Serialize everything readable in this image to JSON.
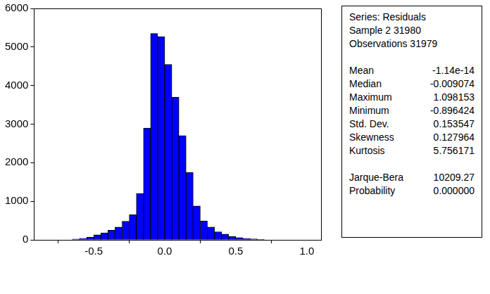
{
  "chart_data": {
    "type": "histogram",
    "bins": [
      -0.65,
      -0.6,
      -0.55,
      -0.5,
      -0.45,
      -0.4,
      -0.35,
      -0.3,
      -0.25,
      -0.2,
      -0.15,
      -0.1,
      -0.05,
      0,
      0.05,
      0.1,
      0.15,
      0.2,
      0.25,
      0.3,
      0.35,
      0.4,
      0.45,
      0.5,
      0.55,
      0.6,
      0.65,
      0.7
    ],
    "values": [
      20,
      40,
      70,
      130,
      180,
      250,
      330,
      480,
      650,
      1200,
      2900,
      5350,
      5270,
      4550,
      3700,
      2700,
      1750,
      880,
      490,
      330,
      210,
      150,
      90,
      60,
      40,
      25,
      10
    ],
    "color": "#0000ff",
    "xlim": [
      -0.92,
      1.1
    ],
    "xticks": [
      {
        "value": -0.5,
        "label": "-0.5"
      },
      {
        "value": 0,
        "label": "0.0"
      },
      {
        "value": 0.5,
        "label": "0.5"
      },
      {
        "value": 1,
        "label": "1.0"
      }
    ],
    "ylim": [
      0,
      6000
    ],
    "yticks": [
      0,
      1000,
      2000,
      3000,
      4000,
      5000,
      6000
    ],
    "grid": false
  },
  "stats_box": {
    "header": [
      "Series: Residuals",
      "Sample 2 31980",
      "Observations 31979"
    ],
    "sections": [
      [
        [
          "Mean",
          "-1.14e-14"
        ],
        [
          "Median",
          "-0.009074"
        ],
        [
          "Maximum",
          "1.098153"
        ],
        [
          "Minimum",
          "-0.896424"
        ],
        [
          "Std. Dev.",
          "0.153547"
        ],
        [
          "Skewness",
          "0.127964"
        ],
        [
          "Kurtosis",
          "5.756171"
        ]
      ],
      [
        [
          "Jarque-Bera",
          "10209.27"
        ],
        [
          "Probability",
          "0.000000"
        ]
      ]
    ]
  }
}
